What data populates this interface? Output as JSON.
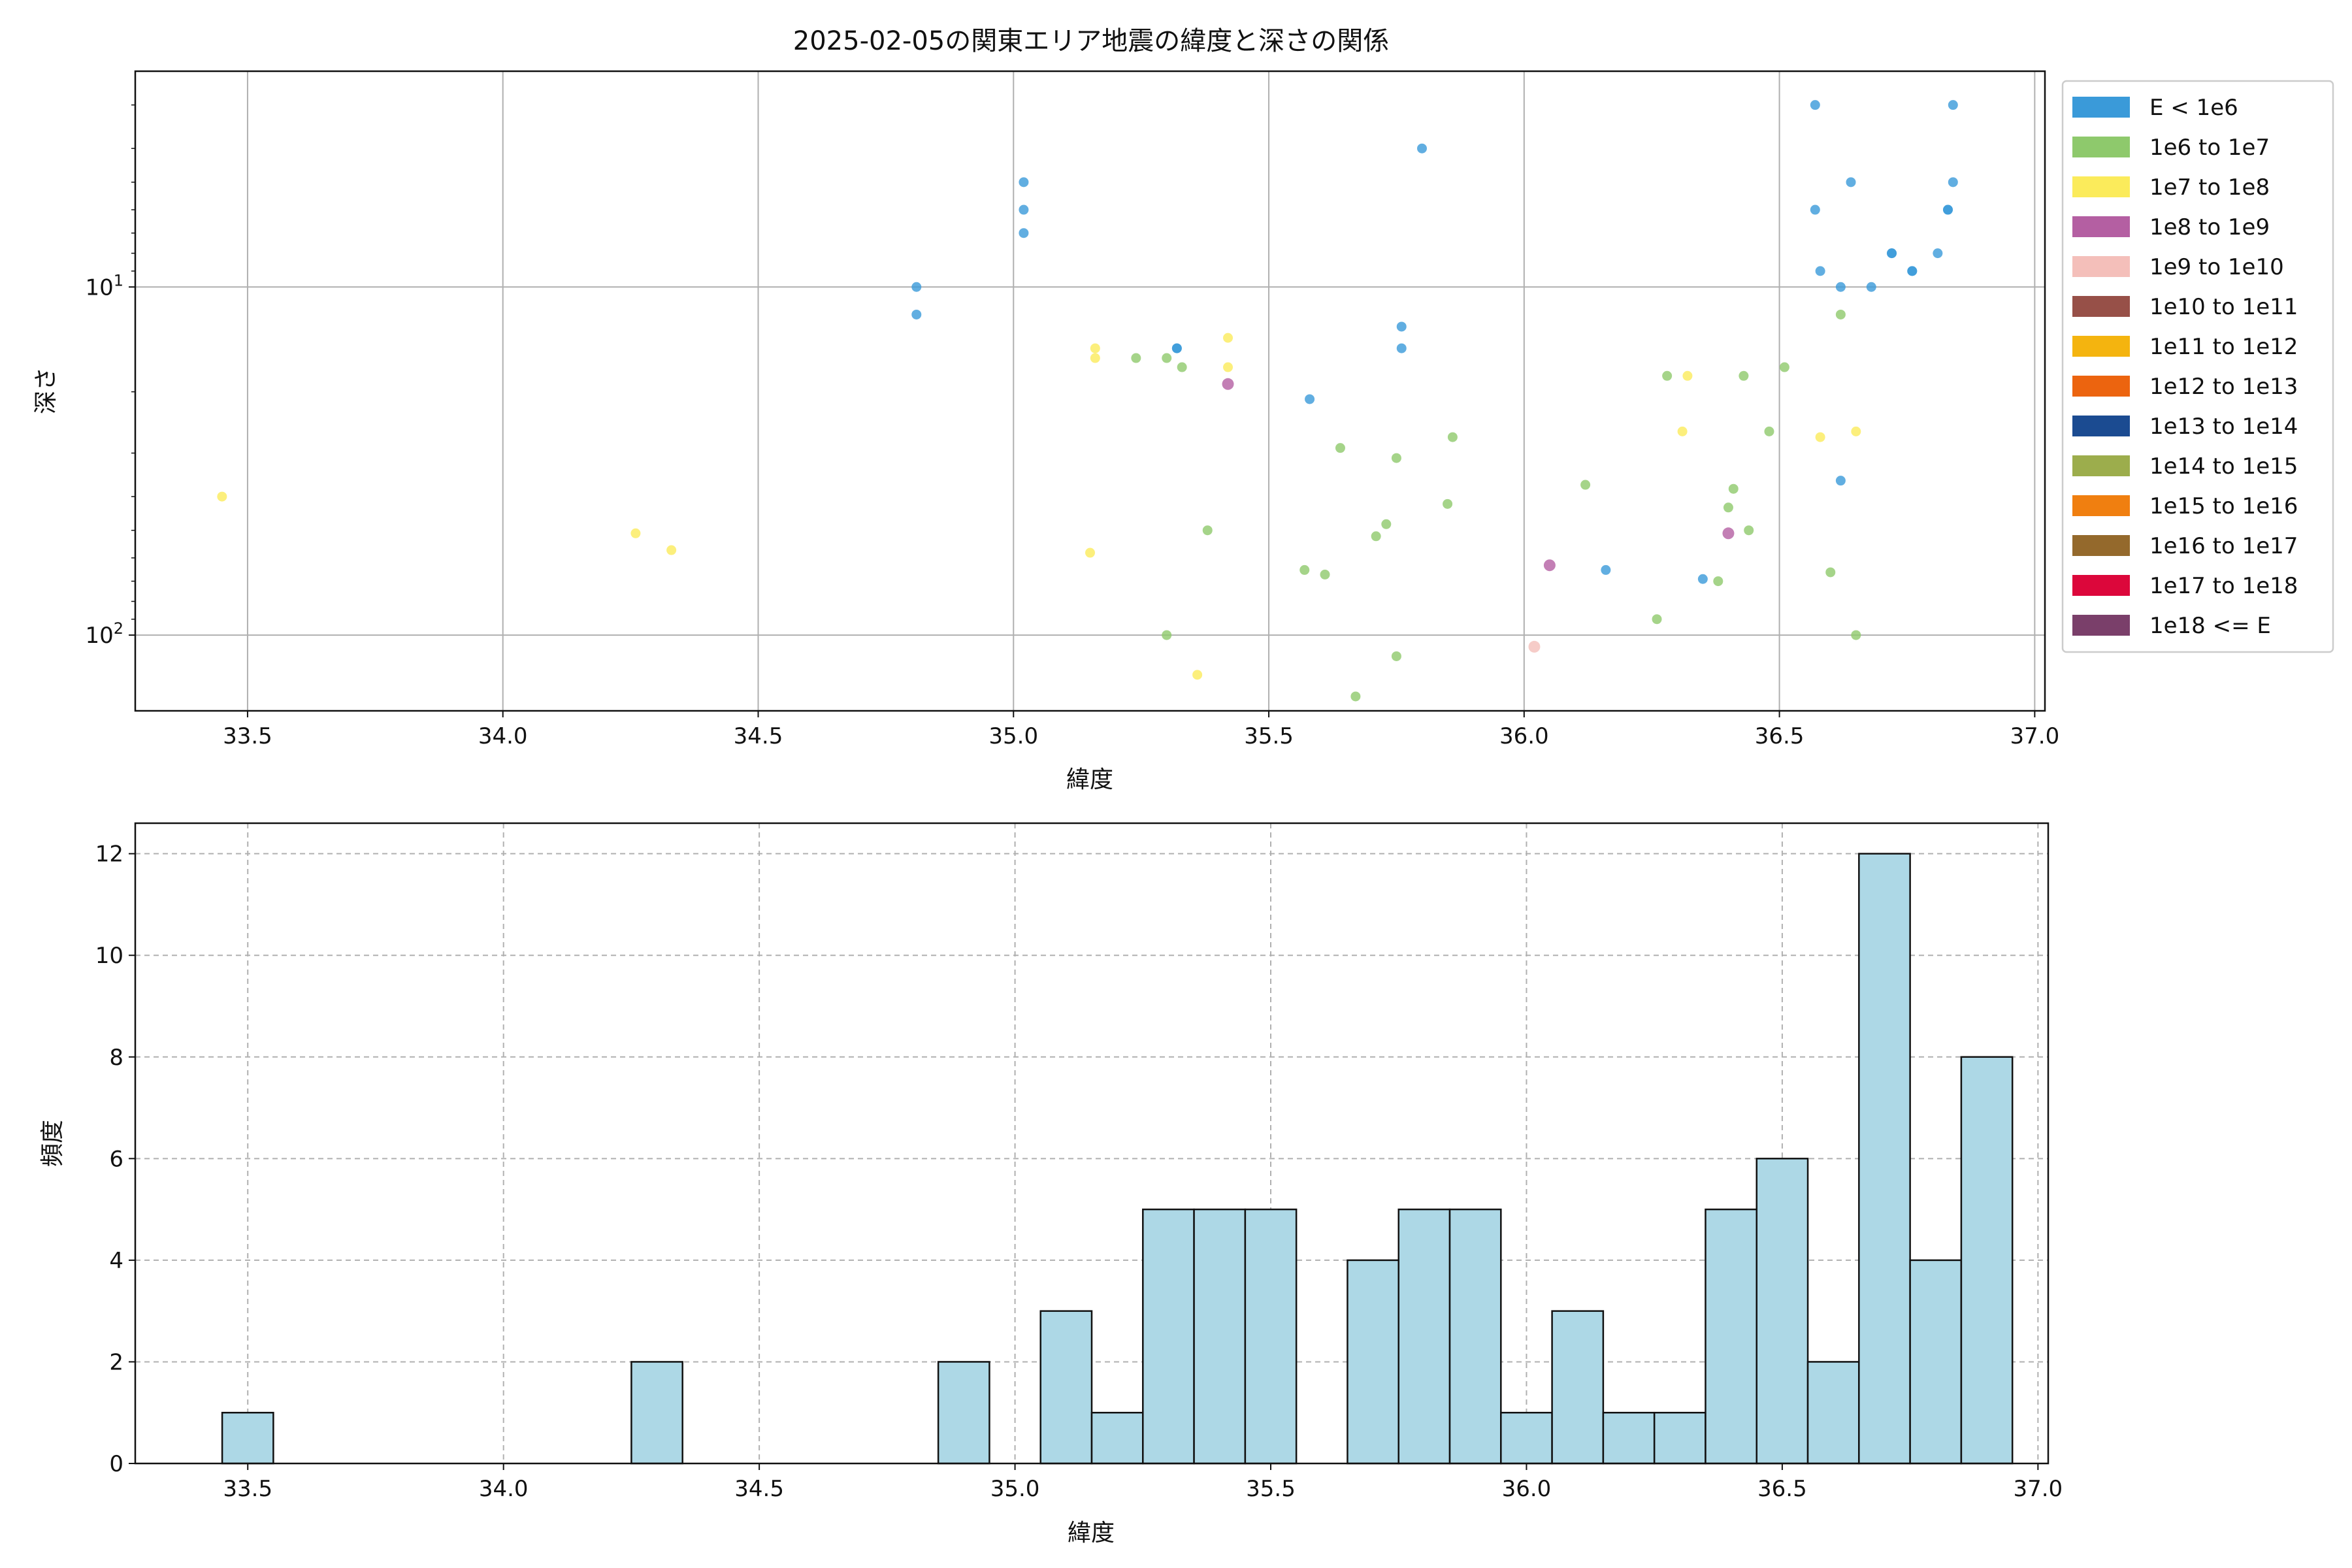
{
  "chart_data": [
    {
      "type": "scatter",
      "title": "2025-02-05の関東エリア地震の緯度と深さの関係",
      "xlabel": "緯度",
      "ylabel": "深さ",
      "xlim": [
        33.28,
        37.02
      ],
      "ylim": [
        165,
        2.4
      ],
      "y_scale": "log",
      "y_inverted": true,
      "grid": true,
      "x_ticks": [
        33.5,
        34.0,
        34.5,
        35.0,
        35.5,
        36.0,
        36.5,
        37.0
      ],
      "x_tick_labels": [
        "33.5",
        "34.0",
        "34.5",
        "35.0",
        "35.5",
        "36.0",
        "36.5",
        "37.0"
      ],
      "y_ticks": [
        {
          "value": 10,
          "base": "10",
          "exp": "1"
        },
        {
          "value": 100,
          "base": "10",
          "exp": "2"
        }
      ],
      "legend_position": "outside-right-top",
      "legend": [
        {
          "label": "E < 1e6",
          "color": "#3a9ad9"
        },
        {
          "label": "1e6 to 1e7",
          "color": "#8ec96c"
        },
        {
          "label": "1e7 to 1e8",
          "color": "#fbeb5b"
        },
        {
          "label": "1e8 to 1e9",
          "color": "#b45fa2"
        },
        {
          "label": "1e9 to 1e10",
          "color": "#f4bfba"
        },
        {
          "label": "1e10 to 1e11",
          "color": "#975048"
        },
        {
          "label": "1e11 to 1e12",
          "color": "#f4b40f"
        },
        {
          "label": "1e12 to 1e13",
          "color": "#ec640f"
        },
        {
          "label": "1e13 to 1e14",
          "color": "#1b4b91"
        },
        {
          "label": "1e14 to 1e15",
          "color": "#9cad4c"
        },
        {
          "label": "1e15 to 1e16",
          "color": "#f07f10"
        },
        {
          "label": "1e16 to 1e17",
          "color": "#94692c"
        },
        {
          "label": "1e17 to 1e18",
          "color": "#dc073b"
        },
        {
          "label": "1e18 <= E",
          "color": "#7a3f6a"
        }
      ],
      "series": [
        {
          "class": 0,
          "points": [
            [
              36.57,
              3.0
            ],
            [
              36.84,
              3.0
            ],
            [
              35.8,
              4.0
            ],
            [
              35.02,
              5.0
            ],
            [
              36.64,
              5.0
            ],
            [
              36.84,
              5.0
            ],
            [
              35.02,
              6.0
            ],
            [
              36.57,
              6.0
            ],
            [
              36.83,
              6.0
            ],
            [
              36.83,
              6.0
            ],
            [
              35.02,
              7.0
            ],
            [
              36.72,
              8.0
            ],
            [
              36.72,
              8.0
            ],
            [
              36.81,
              8.0
            ],
            [
              36.58,
              9.0
            ],
            [
              36.76,
              9.0
            ],
            [
              36.76,
              9.0
            ],
            [
              34.81,
              10.0
            ],
            [
              36.62,
              10.0
            ],
            [
              36.68,
              10.0
            ],
            [
              34.81,
              12.0
            ],
            [
              35.76,
              13.0
            ],
            [
              35.32,
              15.0
            ],
            [
              35.32,
              15.0
            ],
            [
              35.76,
              15.0
            ],
            [
              35.58,
              21.0
            ],
            [
              36.62,
              36.0
            ],
            [
              36.16,
              65.0
            ],
            [
              36.35,
              69.0
            ]
          ]
        },
        {
          "class": 1,
          "points": [
            [
              36.62,
              12.0
            ],
            [
              35.24,
              16.0
            ],
            [
              35.3,
              16.0
            ],
            [
              35.33,
              17.0
            ],
            [
              36.51,
              17.0
            ],
            [
              36.28,
              18.0
            ],
            [
              36.43,
              18.0
            ],
            [
              36.48,
              26.0
            ],
            [
              35.86,
              27.0
            ],
            [
              35.64,
              29.0
            ],
            [
              35.75,
              31.0
            ],
            [
              36.12,
              37.0
            ],
            [
              36.41,
              38.0
            ],
            [
              35.85,
              42.0
            ],
            [
              36.4,
              43.0
            ],
            [
              35.73,
              48.0
            ],
            [
              35.38,
              50.0
            ],
            [
              36.44,
              50.0
            ],
            [
              35.71,
              52.0
            ],
            [
              35.57,
              65.0
            ],
            [
              36.6,
              66.0
            ],
            [
              35.61,
              67.0
            ],
            [
              36.38,
              70.0
            ],
            [
              36.26,
              90.0
            ],
            [
              35.3,
              100.0
            ],
            [
              36.65,
              100.0
            ],
            [
              35.75,
              115.0
            ],
            [
              35.67,
              150.0
            ]
          ]
        },
        {
          "class": 2,
          "points": [
            [
              35.42,
              14.0
            ],
            [
              35.16,
              15.0
            ],
            [
              35.16,
              16.0
            ],
            [
              35.42,
              17.0
            ],
            [
              36.32,
              18.0
            ],
            [
              36.31,
              26.0
            ],
            [
              36.58,
              27.0
            ],
            [
              36.65,
              26.0
            ],
            [
              33.45,
              40.0
            ],
            [
              34.26,
              51.0
            ],
            [
              34.33,
              57.0
            ],
            [
              35.15,
              58.0
            ],
            [
              35.36,
              130.0
            ]
          ]
        },
        {
          "class": 3,
          "points": [
            [
              35.42,
              19.0
            ],
            [
              36.4,
              51.0
            ],
            [
              36.05,
              63.0
            ]
          ]
        },
        {
          "class": 4,
          "points": [
            [
              36.02,
              108.0
            ]
          ]
        }
      ]
    },
    {
      "type": "bar",
      "subtype": "histogram",
      "xlabel": "緯度",
      "ylabel": "頻度",
      "xlim": [
        33.28,
        37.02
      ],
      "ylim": [
        0,
        12.6
      ],
      "grid": true,
      "grid_style": "dashed",
      "bar_color": "#add8e6",
      "edge_color": "#111111",
      "x_ticks": [
        33.5,
        34.0,
        34.5,
        35.0,
        35.5,
        36.0,
        36.5,
        37.0
      ],
      "x_tick_labels": [
        "33.5",
        "34.0",
        "34.5",
        "35.0",
        "35.5",
        "36.0",
        "36.5",
        "37.0"
      ],
      "y_ticks": [
        0,
        2,
        4,
        6,
        8,
        10,
        12
      ],
      "y_tick_labels": [
        "0",
        "2",
        "4",
        "6",
        "8",
        "10",
        "12"
      ],
      "bin_start": 33.45,
      "bin_width": 0.1,
      "counts": [
        1,
        0,
        0,
        0,
        0,
        0,
        0,
        0,
        2,
        0,
        0,
        0,
        0,
        0,
        2,
        0,
        3,
        1,
        5,
        5,
        5,
        0,
        4,
        5,
        5,
        1,
        3,
        1,
        1,
        5,
        6,
        2,
        12,
        4,
        8
      ]
    }
  ]
}
